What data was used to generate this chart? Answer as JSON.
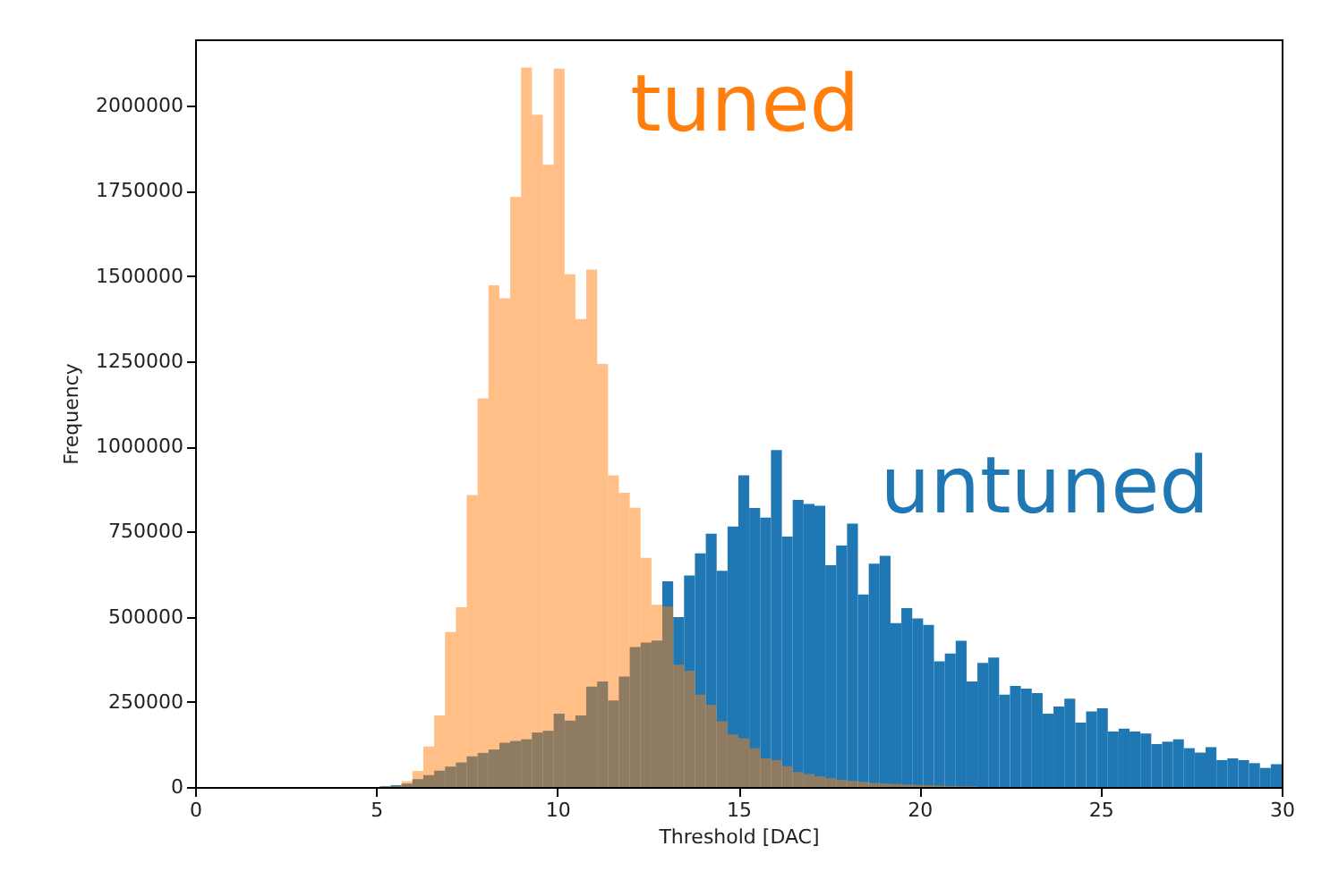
{
  "chart_data": {
    "type": "histogram",
    "xlabel": "Threshold [DAC]",
    "ylabel": "Frequency",
    "xlim": [
      0,
      30
    ],
    "xticks": [
      0,
      5,
      10,
      15,
      20,
      25,
      30
    ],
    "ylim": [
      0,
      2195000
    ],
    "yticks": [
      0,
      250000,
      500000,
      750000,
      1000000,
      1250000,
      1500000,
      1750000,
      2000000
    ],
    "grid": false,
    "legend": false,
    "bins": [
      5.1,
      5.4,
      5.7,
      6,
      6.3,
      6.6,
      6.9,
      7.2,
      7.5,
      7.8,
      8.1,
      8.4,
      8.7,
      9,
      9.3,
      9.6,
      9.9,
      10.2,
      10.5,
      10.8,
      11.1,
      11.4,
      11.7,
      12,
      12.3,
      12.6,
      12.9,
      13.2,
      13.5,
      13.8,
      14.1,
      14.4,
      14.7,
      15,
      15.3,
      15.6,
      15.9,
      16.2,
      16.5,
      16.8,
      17.1,
      17.4,
      17.7,
      18,
      18.3,
      18.6,
      18.9,
      19.2,
      19.5,
      19.8,
      20.1,
      20.4,
      20.7,
      21,
      21.3,
      21.6,
      21.9,
      22.2,
      22.5,
      22.8,
      23.1,
      23.4,
      23.7,
      24,
      24.3,
      24.6,
      24.9,
      25.2,
      25.5,
      25.8,
      26.1,
      26.4,
      26.7,
      27,
      27.3,
      27.6,
      27.9,
      28.2,
      28.5,
      28.8,
      29.1,
      29.4,
      29.7,
      30
    ],
    "series": [
      {
        "name": "untuned",
        "color": "#1f77b4",
        "values": [
          2000,
          5000,
          10000,
          23000,
          35000,
          48000,
          60000,
          72000,
          90000,
          100000,
          110000,
          130000,
          135000,
          140000,
          160000,
          165000,
          215000,
          195000,
          210000,
          295000,
          310000,
          254000,
          324000,
          411000,
          424000,
          430000,
          604000,
          499000,
          621000,
          686000,
          744000,
          635000,
          765000,
          915000,
          819000,
          791000,
          989000,
          735000,
          843000,
          831000,
          826000,
          651000,
          709000,
          773000,
          565000,
          656000,
          679000,
          481000,
          525000,
          495000,
          476000,
          369000,
          392000,
          429000,
          310000,
          364000,
          380000,
          271000,
          297000,
          289000,
          276000,
          215000,
          236000,
          259000,
          189000,
          222000,
          231000,
          163000,
          171000,
          163000,
          157000,
          126000,
          133000,
          140000,
          114000,
          101000,
          117000,
          79000,
          84000,
          79000,
          70000,
          56000,
          67000
        ]
      },
      {
        "name": "tuned",
        "color": "#ff7f0e",
        "values": [
          1000,
          3000,
          17000,
          47000,
          119000,
          210000,
          455000,
          528000,
          857000,
          1141000,
          1473000,
          1435000,
          1732000,
          2112000,
          1974000,
          1827000,
          2109000,
          1505000,
          1374000,
          1519000,
          1242000,
          915000,
          864000,
          820000,
          673000,
          535000,
          530000,
          359000,
          341000,
          271000,
          241000,
          193000,
          154000,
          143000,
          114000,
          84000,
          79000,
          61000,
          44000,
          38000,
          31000,
          26000,
          21000,
          18000,
          15000,
          12000,
          10000,
          9000,
          7000,
          6000,
          5000,
          4000,
          3000,
          2000,
          2000,
          null,
          null,
          null,
          null,
          0,
          0,
          0,
          0,
          0,
          0,
          0,
          0,
          0,
          0,
          0,
          0,
          0,
          0,
          0,
          0,
          0,
          0,
          0,
          0,
          0,
          0,
          0,
          0
        ]
      }
    ]
  }
}
